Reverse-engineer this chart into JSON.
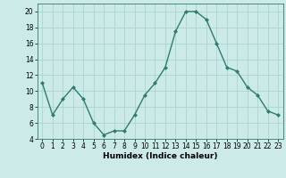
{
  "x": [
    0,
    1,
    2,
    3,
    4,
    5,
    6,
    7,
    8,
    9,
    10,
    11,
    12,
    13,
    14,
    15,
    16,
    17,
    18,
    19,
    20,
    21,
    22,
    23
  ],
  "y": [
    11,
    7,
    9,
    10.5,
    9,
    6,
    4.5,
    5,
    5,
    7,
    9.5,
    11,
    13,
    17.5,
    20,
    20,
    19,
    16,
    13,
    12.5,
    10.5,
    9.5,
    7.5,
    7
  ],
  "line_color": "#2e7d6e",
  "marker": "D",
  "marker_size": 2,
  "bg_color": "#cceae7",
  "grid_color": "#aad4d0",
  "xlabel": "Humidex (Indice chaleur)",
  "ylim": [
    4,
    21
  ],
  "xlim": [
    -0.5,
    23.5
  ],
  "yticks": [
    4,
    6,
    8,
    10,
    12,
    14,
    16,
    18,
    20
  ],
  "xticks": [
    0,
    1,
    2,
    3,
    4,
    5,
    6,
    7,
    8,
    9,
    10,
    11,
    12,
    13,
    14,
    15,
    16,
    17,
    18,
    19,
    20,
    21,
    22,
    23
  ],
  "line_width": 1.0,
  "xlabel_fontsize": 6.5,
  "tick_fontsize": 5.5
}
